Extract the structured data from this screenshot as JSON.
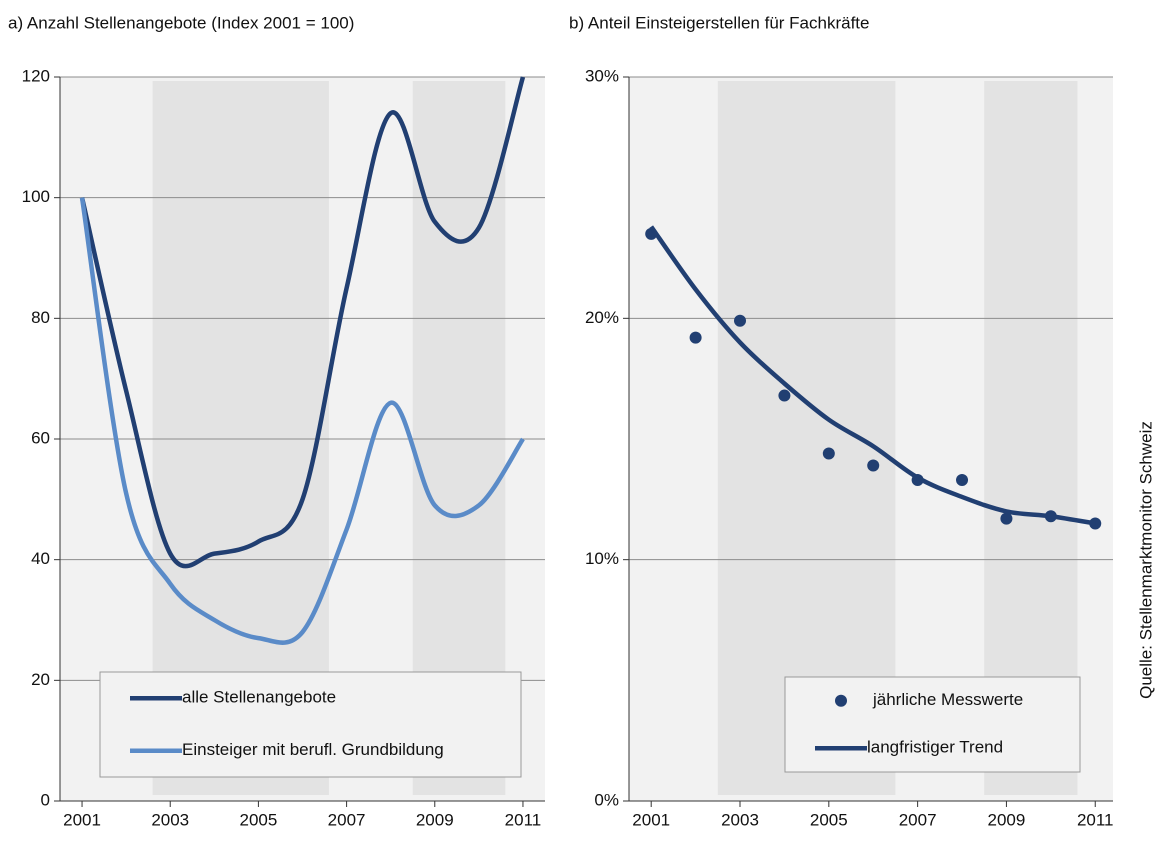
{
  "chart_data": [
    {
      "type": "line",
      "title": "a)  Anzahl Stellenangebote (Index 2001 = 100)",
      "x": [
        2001,
        2002,
        2003,
        2004,
        2005,
        2006,
        2007,
        2008,
        2009,
        2010,
        2011
      ],
      "series": [
        {
          "name": "alle Stellenangebote",
          "color": "#213f72",
          "values": [
            100,
            68,
            41,
            41,
            43,
            50,
            85,
            114,
            96,
            95,
            120
          ]
        },
        {
          "name": "Einsteiger mit berufl. Grundbildung",
          "color": "#5a8bc8",
          "values": [
            100,
            51,
            36,
            30,
            27,
            28,
            45,
            66,
            49,
            49,
            60
          ]
        }
      ],
      "xlim": [
        2000.5,
        2011.5
      ],
      "xticks": [
        2001,
        2003,
        2005,
        2007,
        2009,
        2011
      ],
      "ylim": [
        0,
        120
      ],
      "yticks": [
        0,
        20,
        40,
        60,
        80,
        100,
        120
      ],
      "shaded_periods": [
        [
          2002.6,
          2006.6
        ],
        [
          2008.5,
          2010.6
        ]
      ],
      "grid": true,
      "legend": "bottom"
    },
    {
      "type": "scatter",
      "title": "b)  Anteil Einsteigerstellen  für Fachkräfte",
      "x": [
        2001,
        2002,
        2003,
        2004,
        2005,
        2006,
        2007,
        2008,
        2009,
        2010,
        2011
      ],
      "series": [
        {
          "name": "jährliche Messwerte",
          "color": "#213f72",
          "style": "markers",
          "values": [
            23.5,
            19.2,
            19.9,
            16.8,
            14.4,
            13.9,
            13.3,
            13.3,
            11.7,
            11.8,
            11.5
          ]
        },
        {
          "name": "langfristiger Trend",
          "color": "#213f72",
          "style": "line",
          "values": [
            23.8,
            21.2,
            19.0,
            17.3,
            15.8,
            14.7,
            13.4,
            12.6,
            12.0,
            11.8,
            11.5
          ]
        }
      ],
      "xlim": [
        2000.5,
        2011.4
      ],
      "xticks": [
        2001,
        2003,
        2005,
        2007,
        2009,
        2011
      ],
      "ylim": [
        0,
        30
      ],
      "yticks": [
        {
          "value": 0,
          "label": "0%"
        },
        {
          "value": 10,
          "label": "10%"
        },
        {
          "value": 20,
          "label": "20%"
        },
        {
          "value": 30,
          "label": "30%"
        }
      ],
      "shaded_periods": [
        [
          2002.5,
          2006.5
        ],
        [
          2008.5,
          2010.6
        ]
      ],
      "grid": true,
      "legend": "bottom-right"
    }
  ],
  "source": "Quelle: Stellenmarktmonitor Schweiz"
}
